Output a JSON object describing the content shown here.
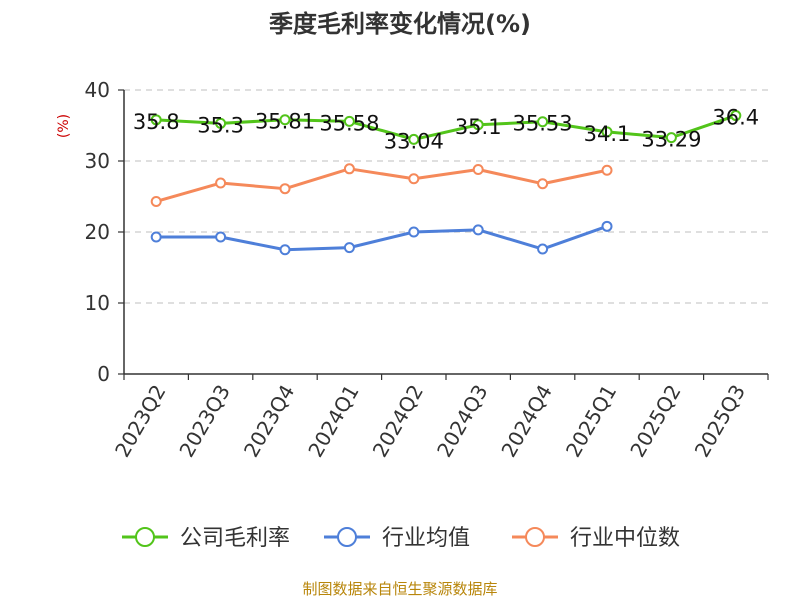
{
  "source_note": "制图数据来自恒生聚源数据库",
  "chart_data": {
    "type": "line",
    "title": "季度毛利率变化情况(%)",
    "xlabel": "",
    "ylabel": "(%)",
    "ylim": [
      0,
      40
    ],
    "yticks": [
      0,
      10,
      20,
      30,
      40
    ],
    "grid": true,
    "legend_position": "bottom",
    "categories": [
      "2023Q2",
      "2023Q3",
      "2023Q4",
      "2024Q1",
      "2024Q2",
      "2024Q3",
      "2024Q4",
      "2025Q1",
      "2025Q2",
      "2025Q3"
    ],
    "series": [
      {
        "name": "公司毛利率",
        "color": "#52c41a",
        "values": [
          35.8,
          35.3,
          35.81,
          35.58,
          33.04,
          35.1,
          35.53,
          34.1,
          33.29,
          36.4
        ],
        "labels": [
          "35.8",
          "35.3",
          "35.81",
          "35.58",
          "33.04",
          "35.1",
          "35.53",
          "34.1",
          "33.29",
          "36.4"
        ]
      },
      {
        "name": "行业均值",
        "color": "#4e7fd9",
        "values": [
          19.3,
          19.3,
          17.5,
          17.8,
          20.0,
          20.3,
          17.6,
          20.8,
          null,
          null
        ]
      },
      {
        "name": "行业中位数",
        "color": "#f5895a",
        "values": [
          24.3,
          26.9,
          26.1,
          28.9,
          27.5,
          28.8,
          26.8,
          28.7,
          null,
          null
        ]
      }
    ]
  }
}
